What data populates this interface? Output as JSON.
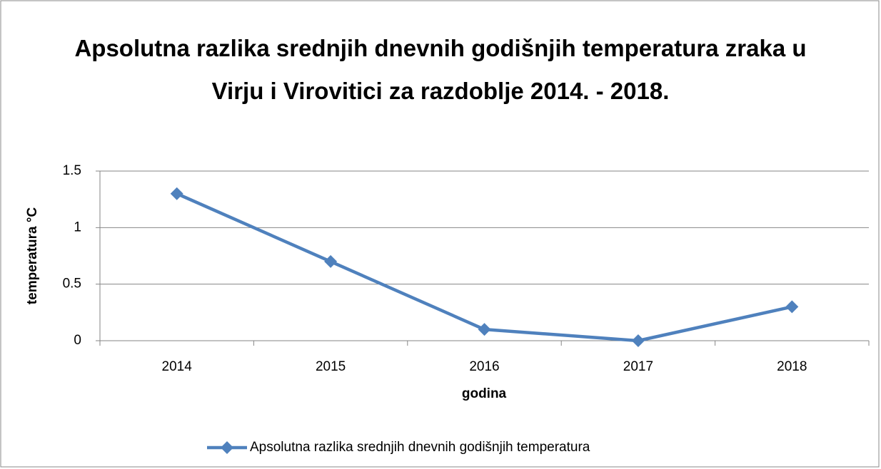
{
  "chart_data": {
    "type": "line",
    "title": "Apsolutna razlika srednjih dnevnih godišnjih temperatura zraka u Virju i Virovitici za razdoblje 2014. - 2018.",
    "x_label": "godina",
    "y_label": "temperatura °C",
    "categories": [
      "2014",
      "2015",
      "2016",
      "2017",
      "2018"
    ],
    "series": [
      {
        "name": "Apsolutna razlika srednjih dnevnih godišnjih temperatura",
        "color": "#4f81bd",
        "values": [
          1.3,
          0.7,
          0.1,
          0,
          0.3
        ]
      }
    ],
    "ylim": [
      0,
      1.5
    ],
    "yticks": [
      0,
      0.5,
      1,
      1.5
    ],
    "grid": true,
    "legend": "bottom"
  }
}
